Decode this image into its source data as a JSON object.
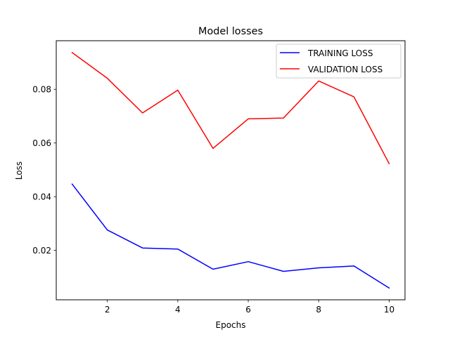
{
  "chart_data": {
    "type": "line",
    "title": "Model losses",
    "xlabel": "Epochs",
    "ylabel": "Loss",
    "x": [
      1,
      2,
      3,
      4,
      5,
      6,
      7,
      8,
      9,
      10
    ],
    "series": [
      {
        "name": "TRAINING LOSS",
        "color": "#0000ff",
        "values": [
          0.0447,
          0.0276,
          0.0209,
          0.0205,
          0.013,
          0.0158,
          0.0122,
          0.0135,
          0.0142,
          0.006
        ]
      },
      {
        "name": "VALIDATION LOSS",
        "color": "#ff0000",
        "values": [
          0.0937,
          0.0841,
          0.0712,
          0.0797,
          0.058,
          0.069,
          0.0693,
          0.0831,
          0.0772,
          0.0523
        ]
      }
    ],
    "xlim": [
      0.55,
      10.45
    ],
    "ylim": [
      0.0016,
      0.0981
    ],
    "xticks": [
      2,
      4,
      6,
      8,
      10
    ],
    "xtick_labels": [
      "2",
      "4",
      "6",
      "8",
      "10"
    ],
    "yticks": [
      0.02,
      0.04,
      0.06,
      0.08
    ],
    "ytick_labels": [
      "0.02",
      "0.04",
      "0.06",
      "0.08"
    ],
    "grid": false,
    "legend_position": "top-right"
  }
}
